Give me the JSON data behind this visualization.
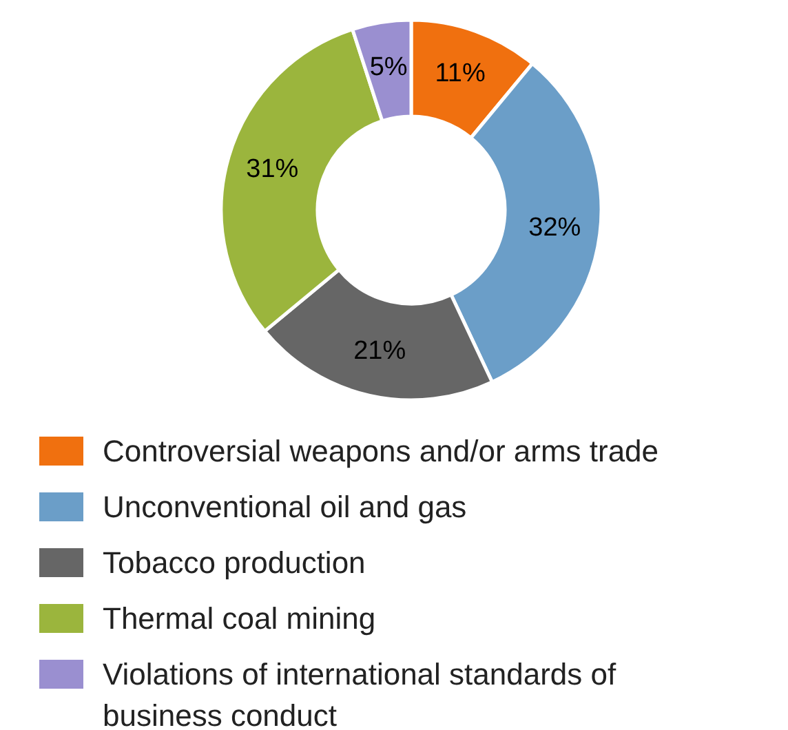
{
  "chart_data": {
    "type": "donut",
    "categories": [
      "Controversial weapons and/or arms trade",
      "Unconventional oil and gas",
      "Tobacco production",
      "Thermal coal mining",
      "Violations of international standards of business conduct"
    ],
    "values": [
      11,
      32,
      21,
      31,
      5
    ],
    "value_labels": [
      "11%",
      "32%",
      "21%",
      "31%",
      "5%"
    ],
    "colors": [
      "#f0700f",
      "#6b9ec8",
      "#666666",
      "#9bb53d",
      "#9a8fd0"
    ],
    "legend": "bottom"
  }
}
